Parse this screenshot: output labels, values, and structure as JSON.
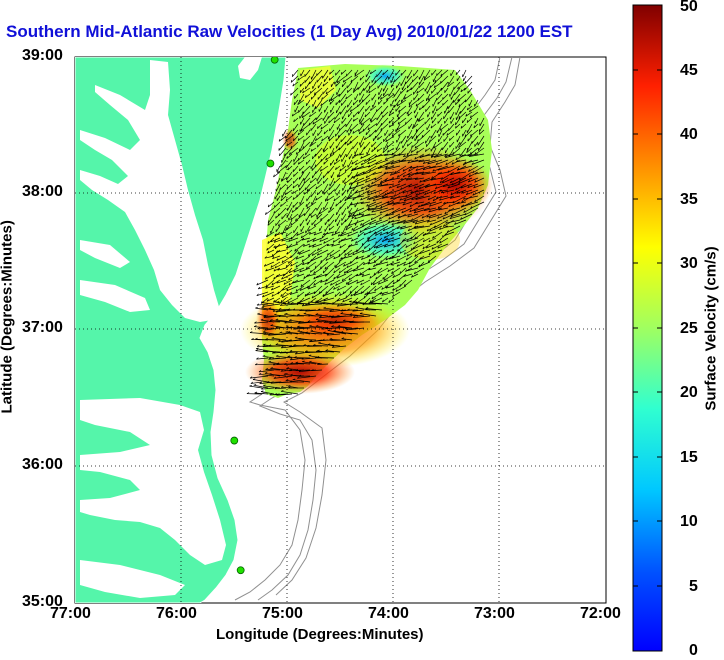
{
  "title": "Southern Mid-Atlantic Raw Velocities (1 Day Avg) 2010/01/22 1200 EST",
  "map": {
    "xlabel": "Longitude (Degrees:Minutes)",
    "ylabel": "Latitude (Degrees:Minutes)",
    "x_ticks": [
      "77:00",
      "76:00",
      "75:00",
      "74:00",
      "73:00",
      "72:00"
    ],
    "y_ticks": [
      "39:00",
      "38:00",
      "37:00",
      "36:00",
      "35:00"
    ],
    "lon_range": [
      -77,
      -72
    ],
    "lat_range": [
      35,
      39
    ],
    "land_color": "#55f5aa",
    "grid": true
  },
  "colorbar": {
    "label": "Surface Velocity (cm/s)",
    "ticks": [
      "50",
      "45",
      "40",
      "35",
      "30",
      "25",
      "20",
      "15",
      "10",
      "5",
      "0"
    ],
    "range": [
      0,
      50
    ],
    "colormap": "jet"
  },
  "stations": [
    {
      "lon": -75.12,
      "lat": 38.98
    },
    {
      "lon": -75.16,
      "lat": 38.22
    },
    {
      "lon": -75.5,
      "lat": 36.19
    },
    {
      "lon": -75.44,
      "lat": 35.24
    }
  ]
}
